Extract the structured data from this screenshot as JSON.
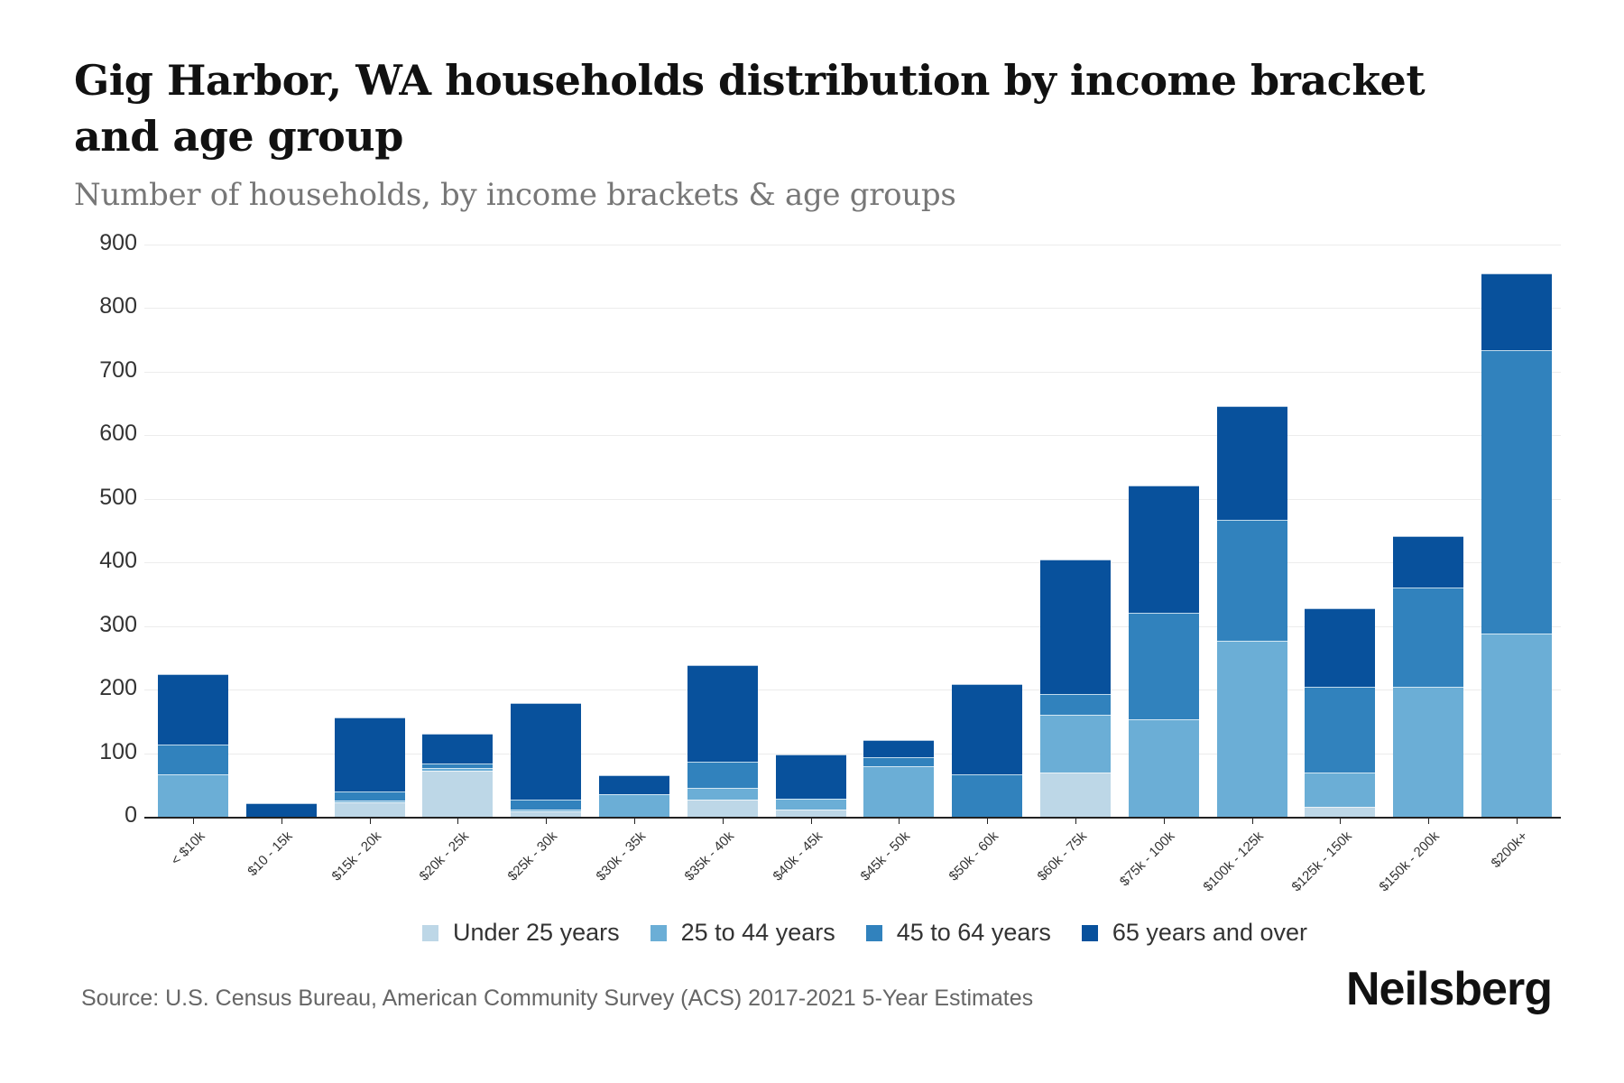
{
  "header": {
    "title": "Gig Harbor, WA households distribution by income bracket and age group",
    "subtitle": "Number of households, by income brackets & age groups"
  },
  "legend": [
    {
      "label": "Under 25 years",
      "color": "#bdd7e7"
    },
    {
      "label": "25 to 44 years",
      "color": "#6baed6"
    },
    {
      "label": "45 to 64 years",
      "color": "#3182bd"
    },
    {
      "label": "65 years and over",
      "color": "#08519c"
    }
  ],
  "footer": {
    "source": "Source: U.S. Census Bureau, American Community Survey (ACS) 2017-2021 5-Year Estimates",
    "brand": "Neilsberg"
  },
  "yticks": [
    "900",
    "800",
    "700",
    "600",
    "500",
    "400",
    "300",
    "200",
    "100",
    "0"
  ],
  "chart_data": {
    "type": "bar",
    "stacked": true,
    "title": "Gig Harbor, WA households distribution by income bracket and age group",
    "subtitle": "Number of households, by income brackets & age groups",
    "xlabel": "",
    "ylabel": "",
    "ylim": [
      0,
      900
    ],
    "yticks": [
      0,
      100,
      200,
      300,
      400,
      500,
      600,
      700,
      800,
      900
    ],
    "grid": true,
    "legend_position": "bottom",
    "categories": [
      "< $10k",
      "$10 - 15k",
      "$15k - 20k",
      "$20k - 25k",
      "$25k - 30k",
      "$30k - 35k",
      "$35k - 40k",
      "$40k - 45k",
      "$45k - 50k",
      "$50k - 60k",
      "$60k - 75k",
      "$75k - 100k",
      "$100k - 125k",
      "$125k - 150k",
      "$150k - 200k",
      "$200k+"
    ],
    "series": [
      {
        "name": "Under 25 years",
        "color": "#bdd7e7",
        "values": [
          0,
          0,
          23,
          73,
          9,
          0,
          27,
          11,
          0,
          0,
          69,
          0,
          0,
          16,
          0,
          0
        ]
      },
      {
        "name": "25 to 44 years",
        "color": "#6baed6",
        "values": [
          66,
          0,
          3,
          3,
          2,
          36,
          19,
          17,
          79,
          0,
          91,
          153,
          276,
          54,
          204,
          288
        ]
      },
      {
        "name": "45 to 64 years",
        "color": "#3182bd",
        "values": [
          48,
          0,
          14,
          7,
          16,
          0,
          41,
          0,
          14,
          66,
          33,
          167,
          190,
          134,
          156,
          445
        ]
      },
      {
        "name": "65 years and over",
        "color": "#08519c",
        "values": [
          110,
          21,
          116,
          48,
          152,
          29,
          152,
          70,
          28,
          143,
          211,
          200,
          180,
          123,
          81,
          121
        ]
      }
    ],
    "source": "Source: U.S. Census Bureau, American Community Survey (ACS) 2017-2021 5-Year Estimates"
  }
}
